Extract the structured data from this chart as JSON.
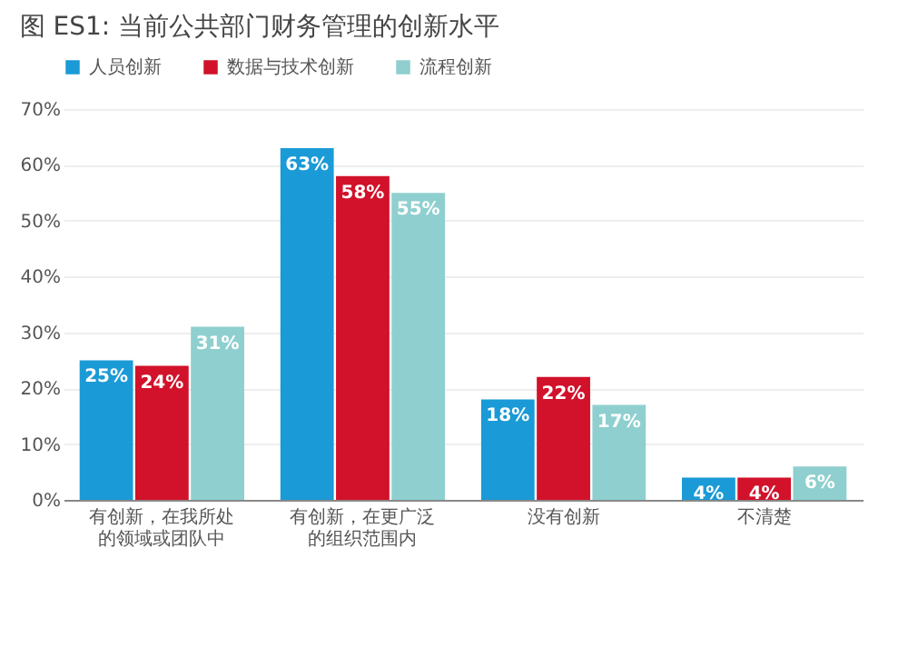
{
  "chart_data": {
    "type": "bar",
    "title": "图 ES1: 当前公共部门财务管理的创新水平",
    "categories": [
      "有创新，在我所处的领域或团队中",
      "有创新，在更广泛的组织范围内",
      "没有创新",
      "不清楚"
    ],
    "series": [
      {
        "name": "人员创新",
        "color": "#1a9ad6",
        "values": [
          25,
          63,
          18,
          4
        ],
        "value_labels": [
          "25%",
          "63%",
          "18%",
          "4%"
        ]
      },
      {
        "name": "数据与技术创新",
        "color": "#d2112a",
        "values": [
          24,
          58,
          22,
          4
        ],
        "value_labels": [
          "24%",
          "58%",
          "22%",
          "4%"
        ]
      },
      {
        "name": "流程创新",
        "color": "#8fcfcf",
        "values": [
          31,
          55,
          17,
          6
        ],
        "value_labels": [
          "31%",
          "55%",
          "17%",
          "6%"
        ]
      }
    ],
    "ylim": [
      0,
      70
    ],
    "yticks": [
      {
        "value": 0,
        "label": "0%"
      },
      {
        "value": 10,
        "label": "10%"
      },
      {
        "value": 20,
        "label": "20%"
      },
      {
        "value": 30,
        "label": "30%"
      },
      {
        "value": 40,
        "label": "40%"
      },
      {
        "value": 50,
        "label": "50%"
      },
      {
        "value": 60,
        "label": "60%"
      },
      {
        "value": 70,
        "label": "70%"
      }
    ],
    "grid": "y",
    "legend": "top"
  }
}
